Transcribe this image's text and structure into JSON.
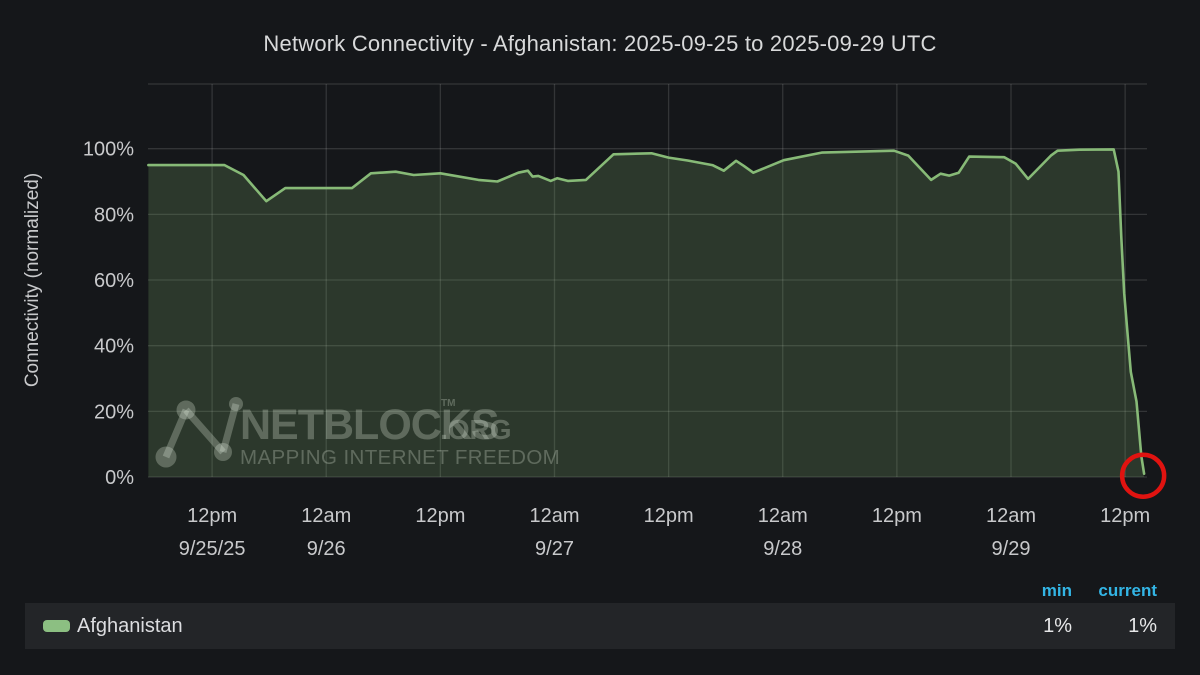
{
  "page": {
    "background": "#15171a"
  },
  "chart": {
    "title": "Network Connectivity - Afghanistan: 2025-09-25 to 2025-09-29 UTC"
  },
  "chart_data": {
    "type": "area",
    "title": "Network Connectivity - Afghanistan: 2025-09-25 to 2025-09-29 UTC",
    "ylabel": "Connectivity (normalized)",
    "x_unit": "hours since 2025-09-25 00:00 UTC",
    "ylim": [
      0,
      120
    ],
    "grid": true,
    "y_ticks": [
      {
        "v": 0,
        "label": "0%"
      },
      {
        "v": 20,
        "label": "20%"
      },
      {
        "v": 40,
        "label": "40%"
      },
      {
        "v": 60,
        "label": "60%"
      },
      {
        "v": 80,
        "label": "80%"
      },
      {
        "v": 100,
        "label": "100%"
      }
    ],
    "x_ticks": [
      {
        "t": 12,
        "time": "12pm",
        "date": "9/25/25"
      },
      {
        "t": 24,
        "time": "12am",
        "date": "9/26"
      },
      {
        "t": 36,
        "time": "12pm",
        "date": ""
      },
      {
        "t": 48,
        "time": "12am",
        "date": "9/27"
      },
      {
        "t": 60,
        "time": "12pm",
        "date": ""
      },
      {
        "t": 72,
        "time": "12am",
        "date": "9/28"
      },
      {
        "t": 84,
        "time": "12pm",
        "date": ""
      },
      {
        "t": 96,
        "time": "12am",
        "date": "9/29"
      },
      {
        "t": 108,
        "time": "12pm",
        "date": ""
      }
    ],
    "series": [
      {
        "name": "Afghanistan",
        "line_color": "#87ba77",
        "fill_color": "rgba(126,178,109,0.22)",
        "points": [
          [
            5.3,
            95
          ],
          [
            13.3,
            95
          ],
          [
            15.3,
            92
          ],
          [
            17.7,
            84
          ],
          [
            19.7,
            88
          ],
          [
            26.7,
            88
          ],
          [
            28.7,
            92.5
          ],
          [
            31.3,
            93
          ],
          [
            33.2,
            92
          ],
          [
            36,
            92.5
          ],
          [
            40,
            90.5
          ],
          [
            42,
            90
          ],
          [
            44.2,
            92.7
          ],
          [
            45.2,
            93.3
          ],
          [
            45.7,
            91.5
          ],
          [
            46.3,
            91.7
          ],
          [
            47.6,
            90.2
          ],
          [
            48.3,
            91
          ],
          [
            49.4,
            90.2
          ],
          [
            51.3,
            90.5
          ],
          [
            54.2,
            98.3
          ],
          [
            58.2,
            98.6
          ],
          [
            60,
            97.3
          ],
          [
            62,
            96.4
          ],
          [
            64.6,
            95
          ],
          [
            65.8,
            93.3
          ],
          [
            67.1,
            96.3
          ],
          [
            67.9,
            94.8
          ],
          [
            68.9,
            92.7
          ],
          [
            72.1,
            96.5
          ],
          [
            76.1,
            98.8
          ],
          [
            81.2,
            99.2
          ],
          [
            83.7,
            99.4
          ],
          [
            85.2,
            97.9
          ],
          [
            87.6,
            90.5
          ],
          [
            88.6,
            92.4
          ],
          [
            89.5,
            91.8
          ],
          [
            90.5,
            92.7
          ],
          [
            91.6,
            97.6
          ],
          [
            95.3,
            97.4
          ],
          [
            96.5,
            95.4
          ],
          [
            97.8,
            90.8
          ],
          [
            100.2,
            97.9
          ],
          [
            100.9,
            99.4
          ],
          [
            103.2,
            99.7
          ],
          [
            106.8,
            99.8
          ],
          [
            107.3,
            93
          ],
          [
            107.6,
            73
          ],
          [
            107.9,
            56
          ],
          [
            108.3,
            42
          ],
          [
            108.6,
            32
          ],
          [
            109.2,
            23
          ],
          [
            109.5,
            13
          ],
          [
            109.7,
            6.4
          ],
          [
            110,
            1
          ]
        ]
      }
    ],
    "annotations": [
      {
        "type": "circle",
        "t": 110,
        "v": 1,
        "radius": 21,
        "color": "#e01310",
        "stroke_width": 4.5
      }
    ],
    "watermark": {
      "brand": "NETBLOCKS",
      "tm": "TM",
      "suffix": ".ORG",
      "tagline": "MAPPING INTERNET FREEDOM"
    },
    "legend_position": "bottom"
  },
  "legend": {
    "headers": {
      "min": "min",
      "current": "current"
    },
    "rows": [
      {
        "label": "Afghanistan",
        "swatch": "#8cbf82",
        "min": "1%",
        "current": "1%"
      }
    ]
  },
  "colors": {
    "background": "#15171a",
    "grid": "rgba(255,255,255,0.13)",
    "axis_text": "#c8c9cb",
    "title_text": "#d8d9da",
    "legend_header": "#33b5e5",
    "legend_row_bg": "#232528",
    "watermark": "rgba(255,255,255,0.28)"
  }
}
